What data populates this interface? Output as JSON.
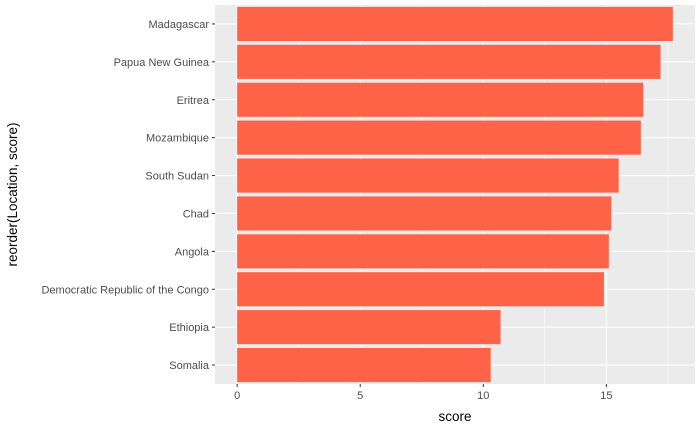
{
  "chart_data": {
    "type": "bar",
    "orientation": "horizontal",
    "xlabel": "score",
    "ylabel": "reorder(Location, score)",
    "categories": [
      "Madagascar",
      "Papua New Guinea",
      "Eritrea",
      "Mozambique",
      "South Sudan",
      "Chad",
      "Angola",
      "Democratic Republic of the Congo",
      "Ethiopia",
      "Somalia"
    ],
    "values": [
      17.7,
      17.2,
      16.5,
      16.4,
      15.5,
      15.2,
      15.1,
      14.9,
      10.7,
      10.3
    ],
    "xlim": [
      -0.9,
      18.6
    ],
    "x_ticks": [
      0,
      5,
      10,
      15
    ],
    "x_minor_ticks": [
      2.5,
      7.5,
      12.5,
      17.5
    ],
    "grid": true,
    "bar_color": "#FF6347",
    "panel_background": "#EBEBEB",
    "grid_color": "#FFFFFF"
  }
}
